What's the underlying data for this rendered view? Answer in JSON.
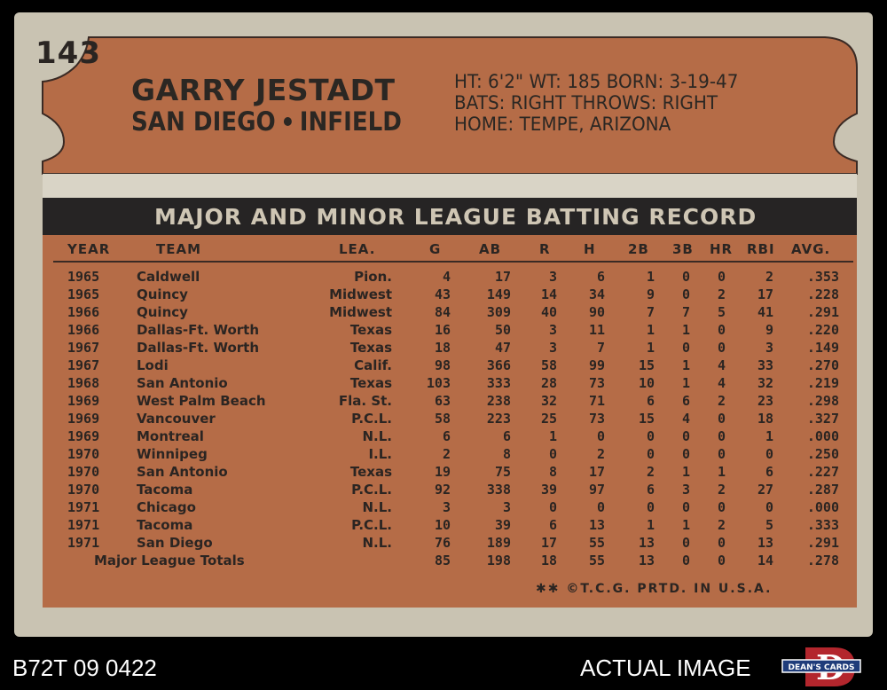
{
  "card": {
    "number": "143",
    "player_name": "GARRY JESTADT",
    "team": "SAN DIEGO",
    "position": "INFIELD",
    "bio_line1": "HT: 6'2\"  WT: 185  BORN: 3-19-47",
    "bio_line2": "BATS: RIGHT      THROWS: RIGHT",
    "bio_line3": "HOME: TEMPE, ARIZONA",
    "record_title": "MAJOR AND MINOR LEAGUE BATTING RECORD",
    "copyright": "✱✱ ©T.C.G. PRTD. IN U.S.A."
  },
  "table": {
    "headers": [
      "YEAR",
      "TEAM",
      "LEA.",
      "G",
      "AB",
      "R",
      "H",
      "2B",
      "3B",
      "HR",
      "RBI",
      "AVG."
    ],
    "rows": [
      [
        "1965",
        "Caldwell",
        "Pion.",
        "4",
        "17",
        "3",
        "6",
        "1",
        "0",
        "0",
        "2",
        ".353"
      ],
      [
        "1965",
        "Quincy",
        "Midwest",
        "43",
        "149",
        "14",
        "34",
        "9",
        "0",
        "2",
        "17",
        ".228"
      ],
      [
        "1966",
        "Quincy",
        "Midwest",
        "84",
        "309",
        "40",
        "90",
        "7",
        "7",
        "5",
        "41",
        ".291"
      ],
      [
        "1966",
        "Dallas-Ft. Worth",
        "Texas",
        "16",
        "50",
        "3",
        "11",
        "1",
        "1",
        "0",
        "9",
        ".220"
      ],
      [
        "1967",
        "Dallas-Ft. Worth",
        "Texas",
        "18",
        "47",
        "3",
        "7",
        "1",
        "0",
        "0",
        "3",
        ".149"
      ],
      [
        "1967",
        "Lodi",
        "Calif.",
        "98",
        "366",
        "58",
        "99",
        "15",
        "1",
        "4",
        "33",
        ".270"
      ],
      [
        "1968",
        "San Antonio",
        "Texas",
        "103",
        "333",
        "28",
        "73",
        "10",
        "1",
        "4",
        "32",
        ".219"
      ],
      [
        "1969",
        "West Palm Beach",
        "Fla. St.",
        "63",
        "238",
        "32",
        "71",
        "6",
        "6",
        "2",
        "23",
        ".298"
      ],
      [
        "1969",
        "Vancouver",
        "P.C.L.",
        "58",
        "223",
        "25",
        "73",
        "15",
        "4",
        "0",
        "18",
        ".327"
      ],
      [
        "1969",
        "Montreal",
        "N.L.",
        "6",
        "6",
        "1",
        "0",
        "0",
        "0",
        "0",
        "1",
        ".000"
      ],
      [
        "1970",
        "Winnipeg",
        "I.L.",
        "2",
        "8",
        "0",
        "2",
        "0",
        "0",
        "0",
        "0",
        ".250"
      ],
      [
        "1970",
        "San Antonio",
        "Texas",
        "19",
        "75",
        "8",
        "17",
        "2",
        "1",
        "1",
        "6",
        ".227"
      ],
      [
        "1970",
        "Tacoma",
        "P.C.L.",
        "92",
        "338",
        "39",
        "97",
        "6",
        "3",
        "2",
        "27",
        ".287"
      ],
      [
        "1971",
        "Chicago",
        "N.L.",
        "3",
        "3",
        "0",
        "0",
        "0",
        "0",
        "0",
        "0",
        ".000"
      ],
      [
        "1971",
        "Tacoma",
        "P.C.L.",
        "10",
        "39",
        "6",
        "13",
        "1",
        "1",
        "2",
        "5",
        ".333"
      ],
      [
        "1971",
        "San Diego",
        "N.L.",
        "76",
        "189",
        "17",
        "55",
        "13",
        "0",
        "0",
        "13",
        ".291"
      ]
    ],
    "totals_label": "Major League Totals",
    "totals": [
      "85",
      "198",
      "18",
      "55",
      "13",
      "0",
      "0",
      "14",
      ".278"
    ]
  },
  "footer": {
    "left": "B72T 09 0422",
    "right": "ACTUAL IMAGE",
    "logo_text": "DEAN'S CARDS",
    "logo_letter": "D"
  },
  "colors": {
    "card_stock": "#c9c3b2",
    "plate": "#b56c47",
    "ink": "#2b2723",
    "title_bar": "#262424"
  }
}
